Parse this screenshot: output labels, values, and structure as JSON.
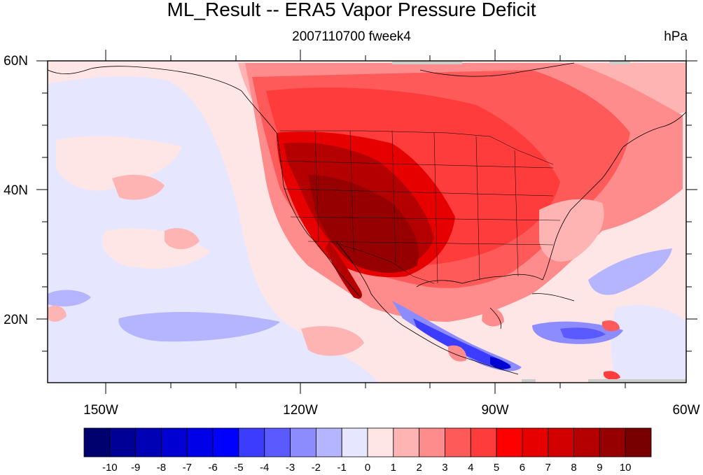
{
  "title": "ML_Result -- ERA5 Vapor Pressure Deficit",
  "subtitle": "2007110700 fweek4",
  "units": "hPa",
  "map": {
    "region": "North America / Eastern Pacific",
    "lat_labels": [
      "60N",
      "40N",
      "20N"
    ],
    "lon_labels": [
      "150W",
      "120W",
      "90W",
      "60W"
    ],
    "lat_range": [
      10,
      60
    ],
    "lon_range": [
      -159,
      -61
    ]
  },
  "colorbar": {
    "labels": [
      "-10",
      "-9",
      "-8",
      "-7",
      "-6",
      "-5",
      "-4",
      "-3",
      "-2",
      "-1",
      "0",
      "1",
      "2",
      "3",
      "4",
      "5",
      "6",
      "7",
      "8",
      "9",
      "10"
    ],
    "colors": [
      "#00006e",
      "#000096",
      "#0000b4",
      "#0000d2",
      "#0000e8",
      "#0000ff",
      "#3c3cff",
      "#5a5aff",
      "#8c8cff",
      "#b4b4ff",
      "#e6e6ff",
      "#ffe6e6",
      "#ffb4b4",
      "#ff8c8c",
      "#ff5a5a",
      "#ff3c3c",
      "#ff0000",
      "#e60000",
      "#d20000",
      "#b40000",
      "#960000",
      "#780000"
    ]
  }
}
